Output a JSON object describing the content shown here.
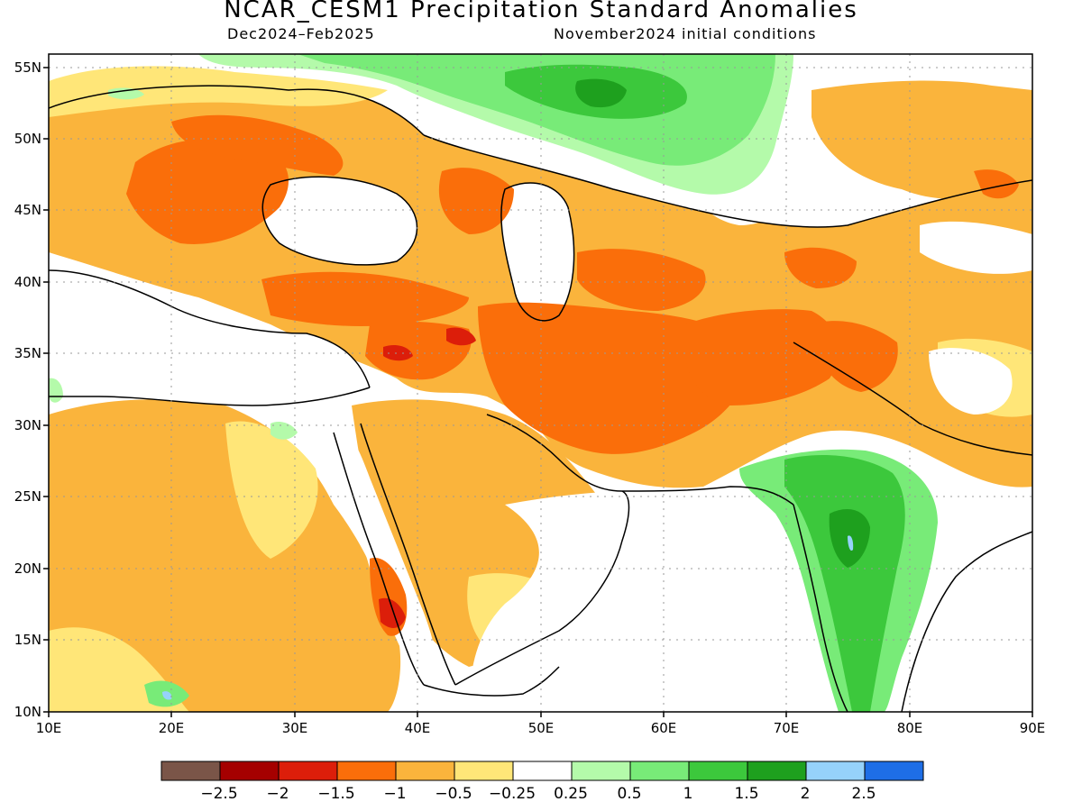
{
  "title": "NCAR_CESM1 Precipitation Standard Anomalies",
  "subtitle_left": "Dec2024–Feb2025",
  "subtitle_right": "November2024 initial conditions",
  "lat_labels": [
    "55N",
    "50N",
    "45N",
    "40N",
    "35N",
    "30N",
    "25N",
    "20N",
    "15N",
    "10N"
  ],
  "lon_labels": [
    "10E",
    "20E",
    "30E",
    "40E",
    "50E",
    "60E",
    "70E",
    "80E",
    "90E"
  ],
  "colorbar": {
    "colors": [
      "#7a5548",
      "#a50000",
      "#dc1e0a",
      "#fa6e0a",
      "#fab43c",
      "#ffe678",
      "#ffffff",
      "#b4faaa",
      "#78eb78",
      "#3cc83c",
      "#1ea01e",
      "#96d2fa",
      "#1e6ee6"
    ],
    "labels": [
      "−2.5",
      "−2",
      "−1.5",
      "−1",
      "−0.5",
      "−0.25",
      "0.25",
      "0.5",
      "1",
      "1.5",
      "2",
      "2.5"
    ]
  }
}
